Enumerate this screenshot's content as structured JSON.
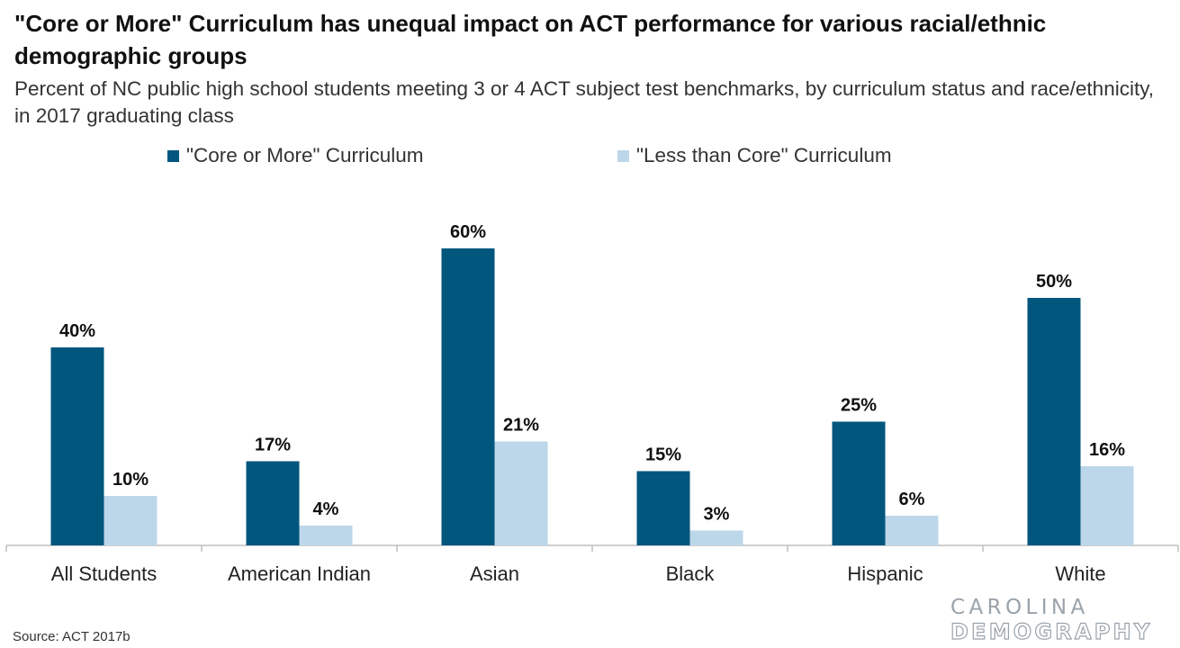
{
  "title": "\"Core or More\" Curriculum has unequal impact on ACT performance for various racial/ethnic demographic groups",
  "subtitle": "Percent of NC public high school students meeting 3 or 4 ACT subject test benchmarks, by curriculum status and race/ethnicity, in 2017 graduating class",
  "source": "Source: ACT 2017b",
  "logo": {
    "line1": "CAROLINA",
    "line2": "DEMOGRAPHY"
  },
  "colors": {
    "core": "#00567d",
    "less": "#bdd7ea",
    "axis": "#bfbfbf"
  },
  "chart_data": {
    "type": "bar",
    "categories": [
      "All Students",
      "American Indian",
      "Asian",
      "Black",
      "Hispanic",
      "White"
    ],
    "series": [
      {
        "name": "\"Core or More\" Curriculum",
        "values": [
          40,
          17,
          60,
          15,
          25,
          50
        ],
        "labels": [
          "40%",
          "17%",
          "60%",
          "15%",
          "25%",
          "50%"
        ]
      },
      {
        "name": "\"Less than Core\" Curriculum",
        "values": [
          10,
          4,
          21,
          3,
          6,
          16
        ],
        "labels": [
          "10%",
          "4%",
          "21%",
          "3%",
          "6%",
          "16%"
        ]
      }
    ],
    "ylim": [
      0,
      70
    ],
    "grid": false,
    "legend": "top",
    "xlabel": "",
    "ylabel": ""
  }
}
